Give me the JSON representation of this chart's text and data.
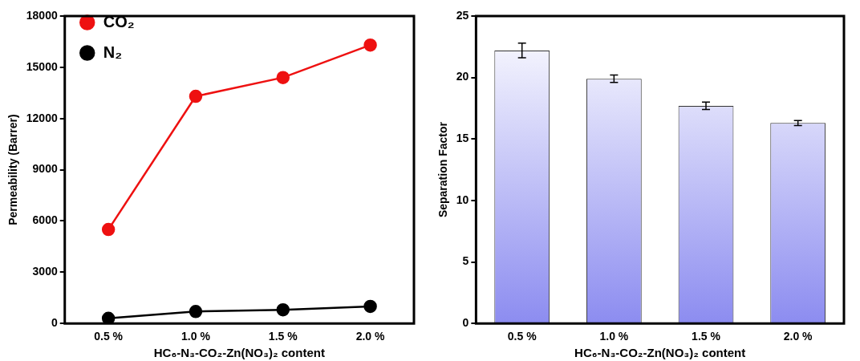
{
  "chart_data": [
    {
      "type": "line",
      "xlabel": "HC₆-N₃-CO₂-Zn(NO₃)₂ content",
      "ylabel": "Permeability (Barrer)",
      "categories": [
        "0.5 %",
        "1.0 %",
        "1.5 %",
        "2.0 %"
      ],
      "series": [
        {
          "name": "CO₂",
          "color": "#ee1111",
          "values": [
            5500,
            13300,
            14400,
            16300
          ]
        },
        {
          "name": "N₂",
          "color": "#000000",
          "values": [
            300,
            700,
            800,
            1000
          ]
        }
      ],
      "ylim": [
        0,
        18000
      ],
      "yticks": [
        0,
        3000,
        6000,
        9000,
        12000,
        15000,
        18000
      ],
      "grid": false,
      "legend": "top left",
      "marker": "circle",
      "line_style": "solid"
    },
    {
      "type": "bar",
      "xlabel": "HC₆-N₃-CO₂-Zn(NO₃)₂ content",
      "ylabel": "Separation Factor",
      "categories": [
        "0.5 %",
        "1.0 %",
        "1.5 %",
        "2.0 %"
      ],
      "values": [
        22.2,
        19.9,
        17.7,
        16.3
      ],
      "errors": [
        0.6,
        0.3,
        0.3,
        0.2
      ],
      "color": "#8c8cf0",
      "ylim": [
        0,
        25
      ],
      "yticks": [
        0,
        5,
        10,
        15,
        20,
        25
      ],
      "grid": false,
      "legend": false
    }
  ]
}
